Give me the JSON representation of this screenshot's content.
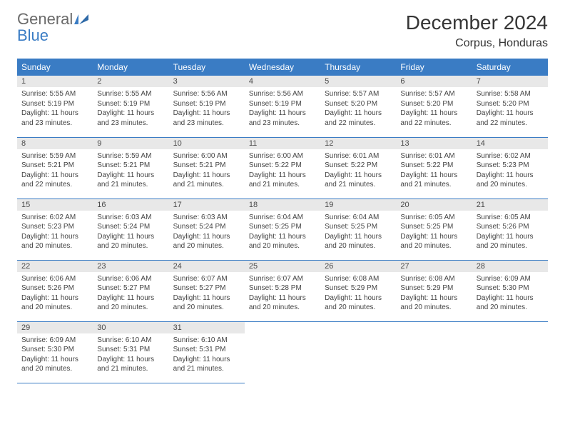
{
  "logo": {
    "general": "General",
    "blue": "Blue"
  },
  "title": "December 2024",
  "location": "Corpus, Honduras",
  "colors": {
    "header_bg": "#3a7cc4",
    "header_text": "#ffffff",
    "daynum_bg": "#e8e8e8",
    "row_divider": "#3a7cc4",
    "body_bg": "#ffffff",
    "text": "#333333",
    "logo_general": "#6a6a6a",
    "logo_blue": "#3a7cc4"
  },
  "day_headers": [
    "Sunday",
    "Monday",
    "Tuesday",
    "Wednesday",
    "Thursday",
    "Friday",
    "Saturday"
  ],
  "days": [
    {
      "n": 1,
      "sunrise": "5:55 AM",
      "sunset": "5:19 PM",
      "daylight": "11 hours and 23 minutes."
    },
    {
      "n": 2,
      "sunrise": "5:55 AM",
      "sunset": "5:19 PM",
      "daylight": "11 hours and 23 minutes."
    },
    {
      "n": 3,
      "sunrise": "5:56 AM",
      "sunset": "5:19 PM",
      "daylight": "11 hours and 23 minutes."
    },
    {
      "n": 4,
      "sunrise": "5:56 AM",
      "sunset": "5:19 PM",
      "daylight": "11 hours and 23 minutes."
    },
    {
      "n": 5,
      "sunrise": "5:57 AM",
      "sunset": "5:20 PM",
      "daylight": "11 hours and 22 minutes."
    },
    {
      "n": 6,
      "sunrise": "5:57 AM",
      "sunset": "5:20 PM",
      "daylight": "11 hours and 22 minutes."
    },
    {
      "n": 7,
      "sunrise": "5:58 AM",
      "sunset": "5:20 PM",
      "daylight": "11 hours and 22 minutes."
    },
    {
      "n": 8,
      "sunrise": "5:59 AM",
      "sunset": "5:21 PM",
      "daylight": "11 hours and 22 minutes."
    },
    {
      "n": 9,
      "sunrise": "5:59 AM",
      "sunset": "5:21 PM",
      "daylight": "11 hours and 21 minutes."
    },
    {
      "n": 10,
      "sunrise": "6:00 AM",
      "sunset": "5:21 PM",
      "daylight": "11 hours and 21 minutes."
    },
    {
      "n": 11,
      "sunrise": "6:00 AM",
      "sunset": "5:22 PM",
      "daylight": "11 hours and 21 minutes."
    },
    {
      "n": 12,
      "sunrise": "6:01 AM",
      "sunset": "5:22 PM",
      "daylight": "11 hours and 21 minutes."
    },
    {
      "n": 13,
      "sunrise": "6:01 AM",
      "sunset": "5:22 PM",
      "daylight": "11 hours and 21 minutes."
    },
    {
      "n": 14,
      "sunrise": "6:02 AM",
      "sunset": "5:23 PM",
      "daylight": "11 hours and 20 minutes."
    },
    {
      "n": 15,
      "sunrise": "6:02 AM",
      "sunset": "5:23 PM",
      "daylight": "11 hours and 20 minutes."
    },
    {
      "n": 16,
      "sunrise": "6:03 AM",
      "sunset": "5:24 PM",
      "daylight": "11 hours and 20 minutes."
    },
    {
      "n": 17,
      "sunrise": "6:03 AM",
      "sunset": "5:24 PM",
      "daylight": "11 hours and 20 minutes."
    },
    {
      "n": 18,
      "sunrise": "6:04 AM",
      "sunset": "5:25 PM",
      "daylight": "11 hours and 20 minutes."
    },
    {
      "n": 19,
      "sunrise": "6:04 AM",
      "sunset": "5:25 PM",
      "daylight": "11 hours and 20 minutes."
    },
    {
      "n": 20,
      "sunrise": "6:05 AM",
      "sunset": "5:25 PM",
      "daylight": "11 hours and 20 minutes."
    },
    {
      "n": 21,
      "sunrise": "6:05 AM",
      "sunset": "5:26 PM",
      "daylight": "11 hours and 20 minutes."
    },
    {
      "n": 22,
      "sunrise": "6:06 AM",
      "sunset": "5:26 PM",
      "daylight": "11 hours and 20 minutes."
    },
    {
      "n": 23,
      "sunrise": "6:06 AM",
      "sunset": "5:27 PM",
      "daylight": "11 hours and 20 minutes."
    },
    {
      "n": 24,
      "sunrise": "6:07 AM",
      "sunset": "5:27 PM",
      "daylight": "11 hours and 20 minutes."
    },
    {
      "n": 25,
      "sunrise": "6:07 AM",
      "sunset": "5:28 PM",
      "daylight": "11 hours and 20 minutes."
    },
    {
      "n": 26,
      "sunrise": "6:08 AM",
      "sunset": "5:29 PM",
      "daylight": "11 hours and 20 minutes."
    },
    {
      "n": 27,
      "sunrise": "6:08 AM",
      "sunset": "5:29 PM",
      "daylight": "11 hours and 20 minutes."
    },
    {
      "n": 28,
      "sunrise": "6:09 AM",
      "sunset": "5:30 PM",
      "daylight": "11 hours and 20 minutes."
    },
    {
      "n": 29,
      "sunrise": "6:09 AM",
      "sunset": "5:30 PM",
      "daylight": "11 hours and 20 minutes."
    },
    {
      "n": 30,
      "sunrise": "6:10 AM",
      "sunset": "5:31 PM",
      "daylight": "11 hours and 21 minutes."
    },
    {
      "n": 31,
      "sunrise": "6:10 AM",
      "sunset": "5:31 PM",
      "daylight": "11 hours and 21 minutes."
    }
  ],
  "labels": {
    "sunrise": "Sunrise:",
    "sunset": "Sunset:",
    "daylight": "Daylight:"
  }
}
